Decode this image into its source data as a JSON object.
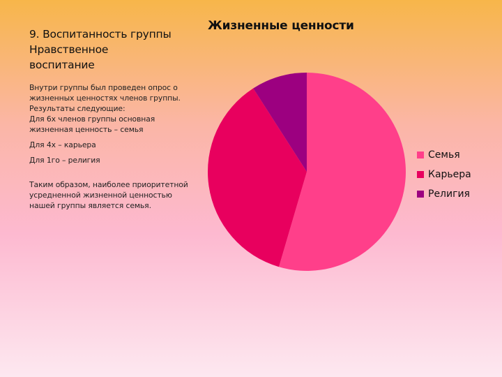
{
  "slide": {
    "heading_line1": "9. Воспитанность группы",
    "heading_line2": "Нравственное",
    "heading_line3": "воспитание",
    "body": {
      "p1": "Внутри группы был проведен опрос о жизненных ценностях членов группы. Результаты следующие:",
      "p2": "Для 6х членов группы основная жизненная ценность – семья",
      "p3": "Для 4х – карьера",
      "p4": "Для 1го – религия",
      "p5": "Таким образом, наиболее приоритетной усредненной жизненной ценностью нашей группы является семья."
    }
  },
  "chart_data": {
    "type": "pie",
    "title": "Жизненные ценности",
    "categories": [
      "Семья",
      "Карьера",
      "Религия"
    ],
    "values": [
      6,
      4,
      1
    ],
    "colors": [
      "#ff3f8a",
      "#e8005e",
      "#9c0080"
    ],
    "start_angle_deg": 0,
    "direction": "clockwise",
    "legend_position": "right"
  }
}
